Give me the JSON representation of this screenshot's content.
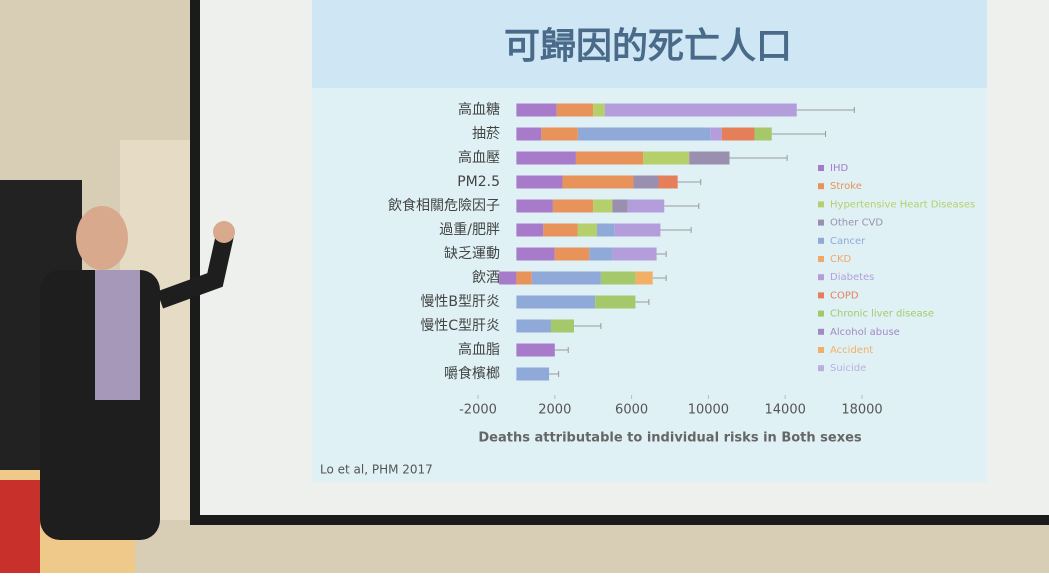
{
  "chart_data": {
    "type": "stacked-barh",
    "title": "可歸因的死亡人口",
    "xlabel": "Deaths attributable to individual risks in Both sexes",
    "source": "Lo et al, PHM 2017",
    "categories": [
      "高血糖",
      "抽菸",
      "高血壓",
      "PM2.5",
      "飲食相關危險因子",
      "過重/肥胖",
      "缺乏運動",
      "飲酒",
      "慢性B型肝炎",
      "慢性C型肝炎",
      "高血脂",
      "嚼食檳榔"
    ],
    "series": [
      {
        "name": "IHD",
        "color": "#a77bc9",
        "values": [
          2100,
          1300,
          3100,
          2400,
          1900,
          1400,
          2000,
          -900,
          0,
          0,
          2000,
          0
        ]
      },
      {
        "name": "Stroke",
        "color": "#e8935a",
        "values": [
          1900,
          1900,
          3500,
          3700,
          2100,
          1800,
          1800,
          800,
          0,
          0,
          0,
          0
        ]
      },
      {
        "name": "Hypertensive Heart Diseases",
        "color": "#b5cf6b",
        "values": [
          600,
          0,
          2400,
          0,
          1000,
          1000,
          0,
          0,
          0,
          0,
          0,
          0
        ]
      },
      {
        "name": "Other CVD",
        "color": "#9b8fb0",
        "values": [
          0,
          0,
          2100,
          1300,
          800,
          0,
          0,
          0,
          0,
          0,
          0,
          0
        ]
      },
      {
        "name": "Cancer",
        "color": "#8fa9d9",
        "values": [
          0,
          6900,
          0,
          0,
          0,
          900,
          1200,
          3600,
          4100,
          1800,
          0,
          1700
        ]
      },
      {
        "name": "CKD",
        "color": "#f0a868",
        "values": [
          0,
          0,
          0,
          0,
          0,
          0,
          0,
          0,
          0,
          0,
          0,
          0
        ]
      },
      {
        "name": "Diabetes",
        "color": "#b39ddb",
        "values": [
          10000,
          600,
          0,
          0,
          1900,
          2400,
          2300,
          0,
          0,
          0,
          0,
          0
        ]
      },
      {
        "name": "COPD",
        "color": "#e57f5a",
        "values": [
          0,
          1700,
          0,
          1000,
          0,
          0,
          0,
          0,
          0,
          0,
          0,
          0
        ]
      },
      {
        "name": "Chronic liver disease",
        "color": "#a5c96a",
        "values": [
          0,
          900,
          0,
          0,
          0,
          0,
          0,
          1800,
          2100,
          1200,
          0,
          0
        ]
      },
      {
        "name": "Alcohol abuse",
        "color": "#a389c4",
        "values": [
          0,
          0,
          0,
          0,
          0,
          0,
          0,
          0,
          0,
          0,
          0,
          0
        ]
      },
      {
        "name": "Accident",
        "color": "#f2b066",
        "values": [
          0,
          0,
          0,
          0,
          0,
          0,
          0,
          900,
          0,
          0,
          0,
          0
        ]
      },
      {
        "name": "Suicide",
        "color": "#b8b0e0",
        "values": [
          0,
          0,
          0,
          0,
          0,
          0,
          0,
          0,
          0,
          0,
          0,
          0
        ]
      }
    ],
    "errors": [
      3000,
      2800,
      3000,
      1200,
      1800,
      1600,
      500,
      700,
      700,
      1400,
      700,
      500
    ],
    "xlim": [
      -2000,
      18000
    ],
    "xticks": [
      -2000,
      2000,
      6000,
      10000,
      14000,
      18000
    ],
    "legend": "right"
  }
}
